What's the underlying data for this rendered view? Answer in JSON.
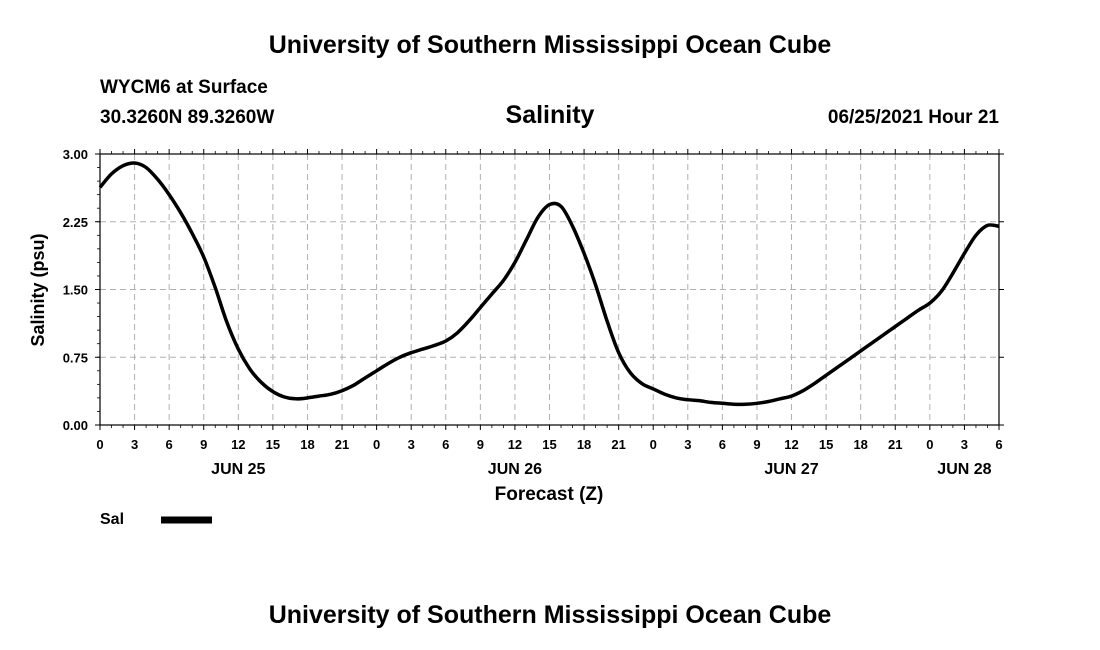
{
  "header": {
    "title_top": "University of Southern Mississippi Ocean Cube",
    "station": "WYCM6 at Surface",
    "coords": "30.3260N  89.3260W",
    "datetime": "06/25/2021 Hour 21",
    "title_bottom": "University of Southern Mississippi Ocean Cube"
  },
  "legend": {
    "label": "Sal"
  },
  "colors": {
    "line": "#000000",
    "grid": "#b0b0b0",
    "background": "#ffffff"
  },
  "chart_data": {
    "type": "line",
    "title": "Salinity",
    "xlabel": "Forecast (Z)",
    "ylabel": "Salinity (psu)",
    "xlim": [
      0,
      78
    ],
    "ylim": [
      0,
      3
    ],
    "yticks": [
      "0.00",
      "0.75",
      "1.50",
      "2.25",
      "3.00"
    ],
    "xticks": [
      "0",
      "3",
      "6",
      "9",
      "12",
      "15",
      "18",
      "21",
      "0",
      "3",
      "6",
      "9",
      "12",
      "15",
      "18",
      "21",
      "0",
      "3",
      "6",
      "9",
      "12",
      "15",
      "18",
      "21",
      "0",
      "3",
      "6"
    ],
    "date_labels": [
      {
        "hour": 12,
        "label": "JUN 25"
      },
      {
        "hour": 36,
        "label": "JUN 26"
      },
      {
        "hour": 60,
        "label": "JUN 27"
      },
      {
        "hour": 75,
        "label": "JUN 28"
      }
    ],
    "grid": true,
    "series": [
      {
        "name": "Sal",
        "x": [
          0,
          1,
          2,
          3,
          4,
          5,
          6,
          7,
          8,
          9,
          10,
          11,
          12,
          13,
          14,
          15,
          16,
          17,
          18,
          19,
          20,
          21,
          22,
          23,
          24,
          25,
          26,
          27,
          28,
          29,
          30,
          31,
          32,
          33,
          34,
          35,
          36,
          37,
          38,
          39,
          40,
          41,
          42,
          43,
          44,
          45,
          46,
          47,
          48,
          49,
          50,
          51,
          52,
          53,
          54,
          55,
          56,
          57,
          58,
          59,
          60,
          61,
          62,
          63,
          64,
          65,
          66,
          67,
          68,
          69,
          70,
          71,
          72,
          73,
          74,
          75,
          76,
          77,
          78
        ],
        "values": [
          2.63,
          2.78,
          2.87,
          2.9,
          2.85,
          2.72,
          2.55,
          2.35,
          2.12,
          1.86,
          1.52,
          1.14,
          0.84,
          0.62,
          0.47,
          0.37,
          0.31,
          0.29,
          0.3,
          0.32,
          0.34,
          0.38,
          0.44,
          0.52,
          0.6,
          0.68,
          0.75,
          0.8,
          0.84,
          0.88,
          0.93,
          1.02,
          1.15,
          1.3,
          1.45,
          1.6,
          1.8,
          2.05,
          2.3,
          2.44,
          2.42,
          2.2,
          1.9,
          1.55,
          1.15,
          0.8,
          0.58,
          0.46,
          0.4,
          0.34,
          0.3,
          0.28,
          0.27,
          0.25,
          0.24,
          0.23,
          0.23,
          0.24,
          0.26,
          0.29,
          0.32,
          0.38,
          0.46,
          0.55,
          0.64,
          0.73,
          0.82,
          0.91,
          1.0,
          1.09,
          1.18,
          1.27,
          1.35,
          1.48,
          1.68,
          1.9,
          2.1,
          2.21,
          2.2
        ]
      }
    ]
  }
}
